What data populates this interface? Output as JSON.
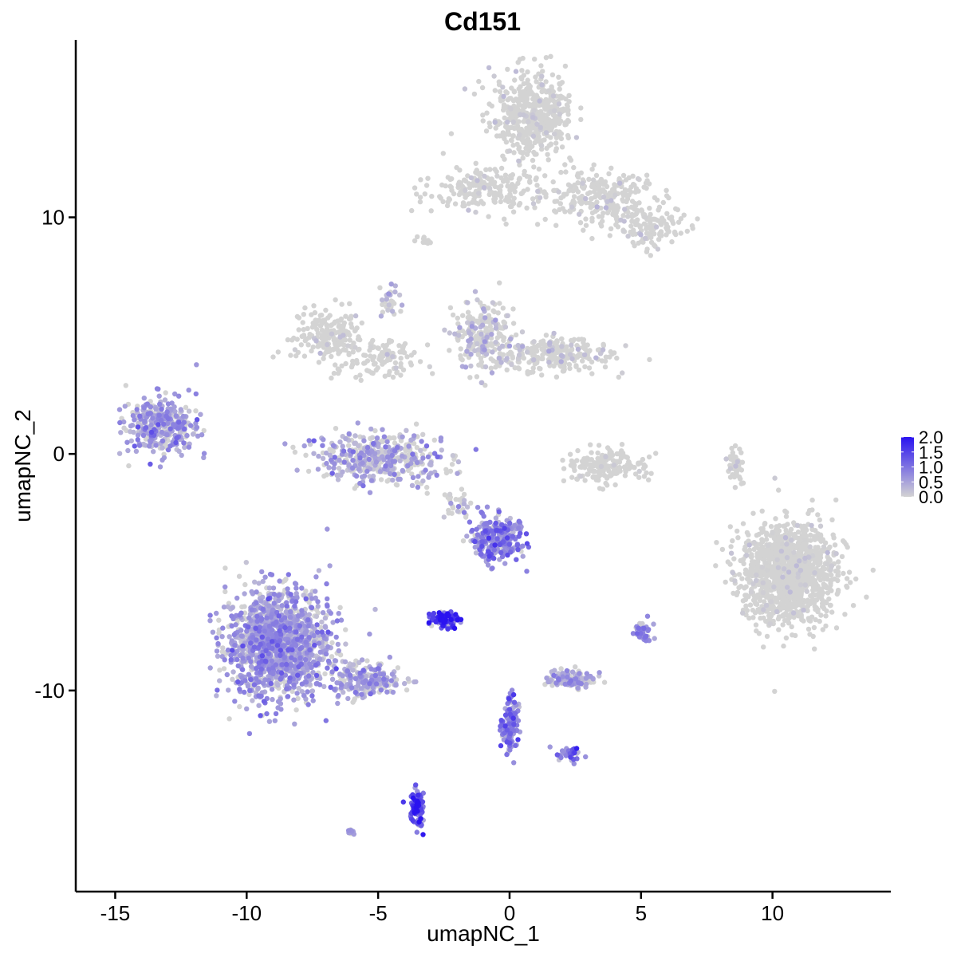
{
  "chart_data": {
    "type": "scatter",
    "title": "Cd151",
    "xlabel": "umapNC_1",
    "ylabel": "umapNC_2",
    "xlim": [
      -16.5,
      14.5
    ],
    "ylim": [
      -18.5,
      17.5
    ],
    "x_ticks": [
      -15,
      -10,
      -5,
      0,
      5,
      10
    ],
    "x_tick_labels": [
      "-15",
      "-10",
      "-5",
      "0",
      "5",
      "10"
    ],
    "y_ticks": [
      -10,
      0,
      10
    ],
    "y_tick_labels": [
      "-10",
      "0",
      "10"
    ],
    "legend": {
      "position": "right",
      "title": "",
      "min": 0.0,
      "max": 2.0,
      "ticks": [
        2.0,
        1.5,
        1.0,
        0.5,
        0.0
      ],
      "tick_labels": [
        "2.0",
        "1.5",
        "1.0",
        "0.5",
        "0.0"
      ],
      "low_color": "#d3d3d3",
      "high_color": "#2a13f0"
    },
    "grid": false,
    "clusters": [
      {
        "cx": 0.8,
        "cy": 14.3,
        "sx": 1.0,
        "sy": 1.2,
        "n": 520,
        "expr": 0.05
      },
      {
        "cx": 3.5,
        "cy": 10.8,
        "sx": 1.5,
        "sy": 0.8,
        "n": 260,
        "expr": 0.05
      },
      {
        "cx": -1.0,
        "cy": 11.2,
        "sx": 1.6,
        "sy": 0.6,
        "n": 190,
        "expr": 0.06
      },
      {
        "cx": 5.4,
        "cy": 9.5,
        "sx": 0.8,
        "sy": 0.6,
        "n": 110,
        "expr": 0.05
      },
      {
        "cx": -7.0,
        "cy": 5.0,
        "sx": 0.8,
        "sy": 0.8,
        "n": 180,
        "expr": 0.05
      },
      {
        "cx": -5.0,
        "cy": 4.0,
        "sx": 1.0,
        "sy": 0.6,
        "n": 110,
        "expr": 0.08
      },
      {
        "cx": -1.0,
        "cy": 5.0,
        "sx": 0.8,
        "sy": 1.0,
        "n": 240,
        "expr": 0.25
      },
      {
        "cx": 1.6,
        "cy": 4.2,
        "sx": 1.5,
        "sy": 0.5,
        "n": 240,
        "expr": 0.12
      },
      {
        "cx": -4.9,
        "cy": -0.2,
        "sx": 1.6,
        "sy": 0.7,
        "n": 430,
        "expr": 0.45
      },
      {
        "cx": -13.2,
        "cy": 1.2,
        "sx": 0.9,
        "sy": 0.8,
        "n": 340,
        "expr": 0.55
      },
      {
        "cx": 3.7,
        "cy": -0.5,
        "sx": 1.0,
        "sy": 0.5,
        "n": 180,
        "expr": 0.03
      },
      {
        "cx": 10.6,
        "cy": -5.0,
        "sx": 1.2,
        "sy": 1.4,
        "n": 1250,
        "expr": 0.04
      },
      {
        "cx": -8.8,
        "cy": -8.0,
        "sx": 1.3,
        "sy": 1.5,
        "n": 1400,
        "expr": 0.55
      },
      {
        "cx": -5.4,
        "cy": -9.6,
        "sx": 0.9,
        "sy": 0.5,
        "n": 230,
        "expr": 0.5
      },
      {
        "cx": -0.5,
        "cy": -3.6,
        "sx": 0.6,
        "sy": 0.6,
        "n": 280,
        "expr": 0.7
      },
      {
        "cx": -2.5,
        "cy": -7.0,
        "sx": 0.35,
        "sy": 0.22,
        "n": 110,
        "expr": 1.5
      },
      {
        "cx": 2.3,
        "cy": -9.5,
        "sx": 0.6,
        "sy": 0.25,
        "n": 130,
        "expr": 0.45
      },
      {
        "cx": -3.5,
        "cy": -15.0,
        "sx": 0.15,
        "sy": 0.5,
        "n": 110,
        "expr": 1.2
      },
      {
        "cx": 0.0,
        "cy": -11.5,
        "sx": 0.2,
        "sy": 0.8,
        "n": 120,
        "expr": 0.8
      },
      {
        "cx": 8.6,
        "cy": -0.5,
        "sx": 0.2,
        "sy": 0.5,
        "n": 45,
        "expr": 0.02
      },
      {
        "cx": 5.1,
        "cy": -7.5,
        "sx": 0.2,
        "sy": 0.3,
        "n": 40,
        "expr": 0.7
      },
      {
        "cx": 2.3,
        "cy": -12.7,
        "sx": 0.3,
        "sy": 0.2,
        "n": 35,
        "expr": 0.8
      },
      {
        "cx": -6.0,
        "cy": -16.0,
        "sx": 0.1,
        "sy": 0.1,
        "n": 12,
        "expr": 0.5
      },
      {
        "cx": -2.0,
        "cy": -2.0,
        "sx": 0.4,
        "sy": 0.6,
        "n": 30,
        "expr": 0.3
      },
      {
        "cx": -3.2,
        "cy": 9.0,
        "sx": 0.2,
        "sy": 0.15,
        "n": 15,
        "expr": 0.05
      },
      {
        "cx": -4.5,
        "cy": 6.5,
        "sx": 0.3,
        "sy": 0.6,
        "n": 30,
        "expr": 0.3
      }
    ]
  }
}
